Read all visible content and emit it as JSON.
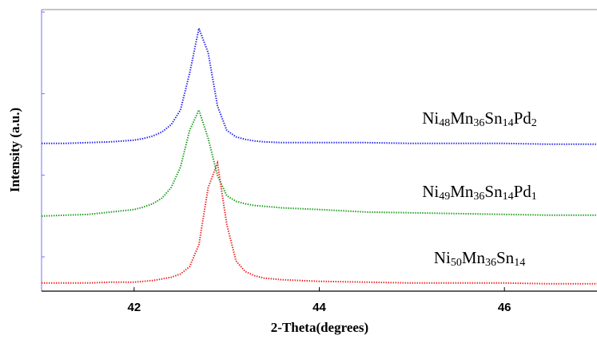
{
  "chart_data": {
    "type": "line",
    "xlabel": "2-Theta(degrees)",
    "ylabel": "Intensity (a.u.)",
    "x": [
      41,
      41.25,
      41.5,
      41.75,
      42,
      42.1,
      42.2,
      42.3,
      42.4,
      42.5,
      42.6,
      42.7,
      42.8,
      42.9,
      43,
      43.1,
      43.2,
      43.3,
      43.4,
      43.6,
      44,
      44.5,
      45,
      45.5,
      46,
      46.5,
      47
    ],
    "series": [
      {
        "name": "Ni48Mn36Sn14Pd2",
        "color": "#1f1fef",
        "values": [
          2.39,
          2.39,
          2.4,
          2.41,
          2.43,
          2.45,
          2.48,
          2.53,
          2.62,
          2.8,
          3.25,
          3.8,
          3.5,
          2.85,
          2.55,
          2.47,
          2.44,
          2.42,
          2.41,
          2.4,
          2.4,
          2.4,
          2.39,
          2.39,
          2.39,
          2.38,
          2.38
        ]
      },
      {
        "name": "Ni49Mn36Sn14Pd1",
        "color": "#1a9a1a",
        "values": [
          1.5,
          1.51,
          1.52,
          1.55,
          1.58,
          1.61,
          1.65,
          1.72,
          1.85,
          2.1,
          2.55,
          2.8,
          2.45,
          2.0,
          1.75,
          1.68,
          1.65,
          1.63,
          1.62,
          1.6,
          1.58,
          1.55,
          1.54,
          1.53,
          1.52,
          1.51,
          1.51
        ]
      },
      {
        "name": "Ni50Mn36Sn14",
        "color": "#ef2020",
        "values": [
          0.68,
          0.68,
          0.68,
          0.69,
          0.69,
          0.7,
          0.71,
          0.73,
          0.75,
          0.79,
          0.88,
          1.15,
          1.85,
          2.15,
          1.4,
          0.95,
          0.82,
          0.77,
          0.74,
          0.72,
          0.7,
          0.69,
          0.68,
          0.68,
          0.68,
          0.67,
          0.67
        ]
      }
    ],
    "xlim": [
      41,
      47
    ],
    "xticks": [
      42,
      44,
      46
    ],
    "ylim": [
      0.58,
      4.03
    ],
    "yticks": [
      1,
      2,
      3,
      4
    ]
  }
}
